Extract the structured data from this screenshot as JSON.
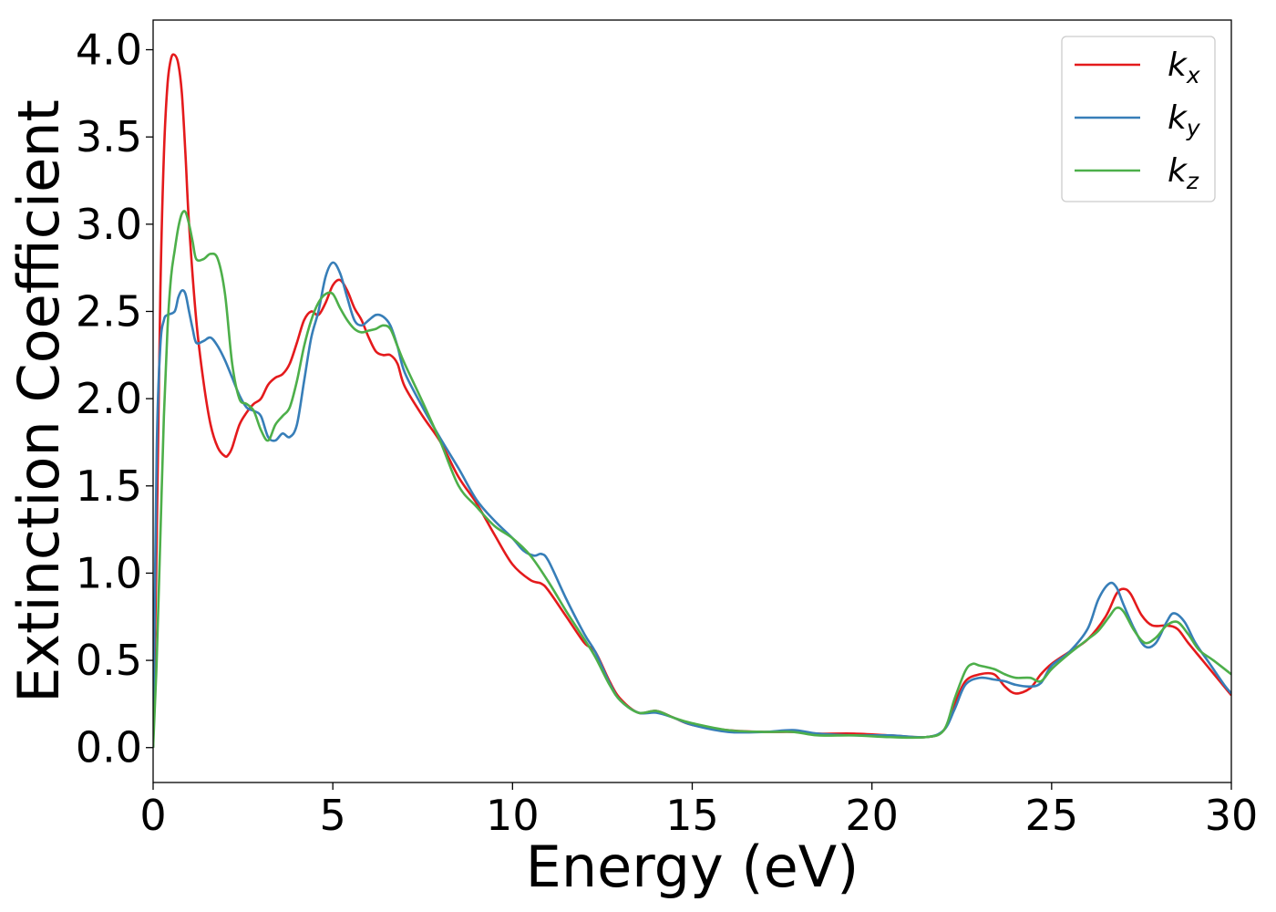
{
  "chart_data": {
    "type": "line",
    "title": "",
    "xlabel": "Energy (eV)",
    "ylabel": "Extinction Coefficient",
    "xlim": [
      0,
      30
    ],
    "ylim": [
      -0.2,
      4.17
    ],
    "xticks": [
      0,
      5,
      10,
      15,
      20,
      25,
      30
    ],
    "xtick_labels": [
      "0",
      "5",
      "10",
      "15",
      "20",
      "25",
      "30"
    ],
    "yticks": [
      0.0,
      0.5,
      1.0,
      1.5,
      2.0,
      2.5,
      3.0,
      3.5,
      4.0
    ],
    "ytick_labels": [
      "0.0",
      "0.5",
      "1.0",
      "1.5",
      "2.0",
      "2.5",
      "3.0",
      "3.5",
      "4.0"
    ],
    "grid": false,
    "legend_position": "top-right",
    "series": [
      {
        "name": "k",
        "subscript": "x",
        "color": "#e41a1c",
        "x": [
          0,
          0.1,
          0.2,
          0.3,
          0.4,
          0.5,
          0.6,
          0.7,
          0.8,
          0.9,
          1.0,
          1.2,
          1.4,
          1.6,
          1.8,
          2.0,
          2.1,
          2.2,
          2.4,
          2.6,
          2.8,
          3.0,
          3.2,
          3.4,
          3.6,
          3.8,
          4.0,
          4.2,
          4.4,
          4.6,
          4.8,
          5.0,
          5.2,
          5.4,
          5.6,
          5.8,
          6.0,
          6.2,
          6.4,
          6.6,
          6.8,
          7.0,
          7.5,
          8.0,
          8.5,
          9.0,
          9.5,
          10.0,
          10.5,
          10.8,
          11.0,
          11.5,
          12.0,
          12.3,
          12.7,
          13.0,
          13.5,
          14.0,
          14.5,
          15.0,
          16.0,
          17.0,
          17.8,
          18.5,
          19.5,
          20.5,
          21.5,
          22.0,
          22.3,
          22.6,
          23.0,
          23.4,
          23.7,
          24.0,
          24.4,
          24.7,
          25.0,
          25.5,
          26.0,
          26.5,
          26.8,
          27.0,
          27.2,
          27.5,
          27.8,
          28.2,
          28.5,
          28.8,
          29.2,
          29.6,
          30.0
        ],
        "y": [
          0.0,
          1.2,
          2.6,
          3.4,
          3.8,
          3.95,
          3.97,
          3.92,
          3.75,
          3.4,
          3.0,
          2.45,
          2.1,
          1.85,
          1.72,
          1.67,
          1.68,
          1.72,
          1.85,
          1.92,
          1.97,
          2.0,
          2.08,
          2.12,
          2.14,
          2.2,
          2.32,
          2.45,
          2.5,
          2.48,
          2.55,
          2.65,
          2.68,
          2.62,
          2.52,
          2.45,
          2.35,
          2.27,
          2.25,
          2.25,
          2.2,
          2.07,
          1.9,
          1.75,
          1.55,
          1.4,
          1.22,
          1.05,
          0.96,
          0.94,
          0.9,
          0.75,
          0.6,
          0.55,
          0.38,
          0.28,
          0.2,
          0.21,
          0.17,
          0.13,
          0.1,
          0.09,
          0.09,
          0.08,
          0.08,
          0.07,
          0.06,
          0.1,
          0.25,
          0.38,
          0.42,
          0.42,
          0.35,
          0.31,
          0.34,
          0.42,
          0.48,
          0.55,
          0.62,
          0.75,
          0.88,
          0.91,
          0.88,
          0.76,
          0.7,
          0.7,
          0.68,
          0.6,
          0.5,
          0.4,
          0.3
        ]
      },
      {
        "name": "k",
        "subscript": "y",
        "color": "#377eb8",
        "x": [
          0,
          0.1,
          0.2,
          0.3,
          0.4,
          0.6,
          0.7,
          0.8,
          0.9,
          1.0,
          1.1,
          1.2,
          1.4,
          1.6,
          1.8,
          2.0,
          2.2,
          2.4,
          2.6,
          2.8,
          3.0,
          3.2,
          3.4,
          3.6,
          3.8,
          4.0,
          4.2,
          4.4,
          4.6,
          4.8,
          5.0,
          5.2,
          5.4,
          5.6,
          5.8,
          6.0,
          6.2,
          6.4,
          6.6,
          6.8,
          7.0,
          7.5,
          8.0,
          8.5,
          9.0,
          9.5,
          10.0,
          10.3,
          10.6,
          10.8,
          11.0,
          11.5,
          12.0,
          12.3,
          12.7,
          13.0,
          13.5,
          14.0,
          14.5,
          15.0,
          16.0,
          17.0,
          17.8,
          18.5,
          19.5,
          20.5,
          21.5,
          22.0,
          22.3,
          22.6,
          23.0,
          23.4,
          23.7,
          24.0,
          24.4,
          24.7,
          25.0,
          25.5,
          26.0,
          26.3,
          26.6,
          26.8,
          27.0,
          27.3,
          27.6,
          27.9,
          28.2,
          28.4,
          28.7,
          29.0,
          29.4,
          29.8,
          30.0
        ],
        "y": [
          0.0,
          1.7,
          2.3,
          2.45,
          2.48,
          2.5,
          2.58,
          2.62,
          2.6,
          2.5,
          2.4,
          2.32,
          2.33,
          2.35,
          2.3,
          2.22,
          2.12,
          2.02,
          1.95,
          1.93,
          1.9,
          1.78,
          1.76,
          1.8,
          1.78,
          1.85,
          2.1,
          2.35,
          2.5,
          2.7,
          2.78,
          2.72,
          2.58,
          2.45,
          2.42,
          2.45,
          2.48,
          2.47,
          2.42,
          2.3,
          2.15,
          1.95,
          1.77,
          1.6,
          1.42,
          1.3,
          1.2,
          1.13,
          1.1,
          1.11,
          1.07,
          0.85,
          0.65,
          0.55,
          0.37,
          0.27,
          0.2,
          0.2,
          0.17,
          0.13,
          0.09,
          0.09,
          0.1,
          0.08,
          0.07,
          0.07,
          0.06,
          0.1,
          0.22,
          0.36,
          0.4,
          0.39,
          0.38,
          0.36,
          0.35,
          0.37,
          0.47,
          0.55,
          0.68,
          0.85,
          0.94,
          0.92,
          0.82,
          0.68,
          0.58,
          0.6,
          0.72,
          0.77,
          0.72,
          0.6,
          0.48,
          0.36,
          0.31
        ]
      },
      {
        "name": "k",
        "subscript": "z",
        "color": "#4daf4a",
        "x": [
          0,
          0.1,
          0.2,
          0.3,
          0.4,
          0.5,
          0.6,
          0.7,
          0.8,
          0.9,
          1.0,
          1.1,
          1.2,
          1.4,
          1.6,
          1.8,
          2.0,
          2.2,
          2.4,
          2.6,
          2.8,
          3.0,
          3.2,
          3.4,
          3.6,
          3.8,
          4.0,
          4.2,
          4.4,
          4.6,
          4.8,
          5.0,
          5.2,
          5.4,
          5.6,
          5.8,
          6.0,
          6.2,
          6.4,
          6.6,
          6.8,
          7.0,
          7.5,
          8.0,
          8.5,
          9.0,
          9.5,
          10.0,
          10.5,
          11.0,
          11.5,
          12.0,
          12.3,
          12.7,
          13.0,
          13.5,
          14.0,
          14.5,
          15.0,
          16.0,
          17.0,
          17.8,
          18.5,
          19.5,
          20.5,
          21.5,
          22.0,
          22.3,
          22.6,
          22.8,
          23.0,
          23.4,
          23.7,
          24.0,
          24.4,
          24.7,
          25.0,
          25.5,
          26.0,
          26.3,
          26.6,
          26.8,
          27.0,
          27.3,
          27.6,
          27.9,
          28.2,
          28.5,
          28.8,
          29.1,
          29.5,
          30.0
        ],
        "y": [
          0.0,
          0.5,
          1.2,
          1.9,
          2.4,
          2.7,
          2.85,
          2.98,
          3.06,
          3.07,
          3.0,
          2.9,
          2.8,
          2.8,
          2.83,
          2.8,
          2.6,
          2.2,
          2.0,
          1.97,
          1.93,
          1.82,
          1.76,
          1.85,
          1.9,
          1.95,
          2.1,
          2.3,
          2.45,
          2.55,
          2.6,
          2.6,
          2.52,
          2.45,
          2.4,
          2.38,
          2.39,
          2.4,
          2.42,
          2.4,
          2.3,
          2.2,
          1.98,
          1.75,
          1.5,
          1.38,
          1.27,
          1.2,
          1.1,
          0.95,
          0.78,
          0.62,
          0.52,
          0.36,
          0.27,
          0.2,
          0.21,
          0.17,
          0.14,
          0.1,
          0.09,
          0.09,
          0.07,
          0.07,
          0.06,
          0.06,
          0.1,
          0.28,
          0.44,
          0.48,
          0.47,
          0.45,
          0.42,
          0.4,
          0.4,
          0.38,
          0.45,
          0.54,
          0.62,
          0.67,
          0.75,
          0.8,
          0.78,
          0.67,
          0.6,
          0.63,
          0.7,
          0.72,
          0.65,
          0.56,
          0.5,
          0.42
        ]
      }
    ]
  }
}
